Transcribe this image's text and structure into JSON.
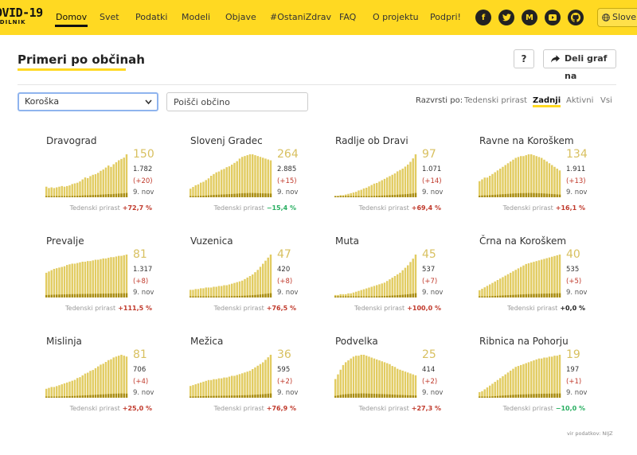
{
  "nav": {
    "logo_main": "OVID-19",
    "logo_sub": "EDILNIK",
    "items": [
      {
        "label": "Domov",
        "active": true
      },
      {
        "label": "Svet"
      },
      {
        "label": "Podatki"
      },
      {
        "label": "Modeli"
      },
      {
        "label": "Objave"
      },
      {
        "label": "#OstaniZdrav"
      },
      {
        "label": "FAQ"
      },
      {
        "label": "O projektu"
      },
      {
        "label": "Podpri!"
      }
    ],
    "social": [
      "facebook-icon",
      "twitter-icon",
      "medium-icon",
      "youtube-icon",
      "github-icon"
    ],
    "language": "Sloven"
  },
  "header": {
    "title": "Primeri po občinah",
    "help_label": "?",
    "share_label": "Deli graf na"
  },
  "filters": {
    "region": "Koroška",
    "search_placeholder": "Poišči občino",
    "sort_label": "Razvrsti po:",
    "sort_options": [
      "Tedenski prirast",
      "Zadnji",
      "Aktivni",
      "Vsi"
    ],
    "sort_active": "Zadnji"
  },
  "growth_label": "Tedenski prirast",
  "colors": {
    "accent": "#ffd922",
    "bar_light": "#e2cc62",
    "bar_dark": "#a88c12",
    "positive": "#c0392b",
    "negative": "#27ae60"
  },
  "cards": [
    {
      "name": "Dravograd",
      "value": "150",
      "total": "1.782",
      "delta": "(+20)",
      "date": "9. nov",
      "growth": "+72,7 %",
      "trend": "pos",
      "bars": [
        16,
        14,
        15,
        14,
        15,
        16,
        17,
        16,
        17,
        18,
        20,
        21,
        22,
        24,
        27,
        30,
        29,
        32,
        34,
        35,
        37,
        40,
        42,
        45,
        48,
        46,
        50,
        53,
        56,
        58,
        60,
        65
      ]
    },
    {
      "name": "Slovenj Gradec",
      "value": "264",
      "total": "2.885",
      "delta": "(+15)",
      "date": "9. nov",
      "growth": "−15,4 %",
      "trend": "neg",
      "bars": [
        10,
        12,
        14,
        15,
        17,
        18,
        20,
        22,
        25,
        27,
        29,
        30,
        32,
        33,
        35,
        36,
        38,
        40,
        42,
        45,
        47,
        48,
        49,
        50,
        50,
        49,
        48,
        47,
        46,
        45,
        44,
        43
      ]
    },
    {
      "name": "Radlje ob Dravi",
      "value": "97",
      "total": "1.071",
      "delta": "(+14)",
      "date": "9. nov",
      "growth": "+69,4 %",
      "trend": "pos",
      "bars": [
        2,
        2,
        3,
        3,
        4,
        5,
        6,
        7,
        8,
        10,
        11,
        13,
        14,
        16,
        18,
        20,
        21,
        23,
        25,
        27,
        29,
        31,
        33,
        35,
        38,
        40,
        42,
        45,
        48,
        52,
        57,
        63
      ]
    },
    {
      "name": "Ravne na Koroškem",
      "value": "134",
      "total": "1.911",
      "delta": "(+13)",
      "date": "9. nov",
      "growth": "+16,1 %",
      "trend": "pos",
      "bars": [
        18,
        20,
        22,
        22,
        24,
        26,
        28,
        30,
        32,
        34,
        36,
        38,
        40,
        42,
        44,
        45,
        46,
        46,
        47,
        48,
        48,
        47,
        46,
        45,
        44,
        42,
        40,
        38,
        36,
        34,
        32,
        30
      ]
    },
    {
      "name": "Prevalje",
      "value": "81",
      "total": "1.317",
      "delta": "(+8)",
      "date": "9. nov",
      "growth": "+111,5 %",
      "trend": "pos",
      "bars": [
        38,
        40,
        42,
        44,
        45,
        46,
        47,
        48,
        50,
        51,
        52,
        52,
        53,
        54,
        55,
        55,
        56,
        56,
        57,
        58,
        58,
        59,
        60,
        60,
        61,
        62,
        62,
        63,
        64,
        64,
        65,
        66
      ]
    },
    {
      "name": "Vuzenica",
      "value": "47",
      "total": "420",
      "delta": "(+8)",
      "date": "9. nov",
      "growth": "+76,5 %",
      "trend": "pos",
      "bars": [
        10,
        10,
        11,
        11,
        12,
        12,
        13,
        13,
        13,
        14,
        14,
        15,
        15,
        16,
        16,
        17,
        18,
        19,
        20,
        21,
        22,
        24,
        26,
        28,
        30,
        33,
        36,
        40,
        44,
        48,
        52,
        56
      ]
    },
    {
      "name": "Muta",
      "value": "45",
      "total": "537",
      "delta": "(+7)",
      "date": "9. nov",
      "growth": "+100,0 %",
      "trend": "pos",
      "bars": [
        3,
        3,
        4,
        4,
        4,
        5,
        5,
        6,
        7,
        8,
        9,
        10,
        11,
        12,
        13,
        14,
        15,
        16,
        17,
        18,
        20,
        22,
        24,
        26,
        28,
        30,
        33,
        36,
        39,
        43,
        47,
        52
      ]
    },
    {
      "name": "Črna na Koroškem",
      "value": "40",
      "total": "535",
      "delta": "(+5)",
      "date": "9. nov",
      "growth": "+0,0 %",
      "trend": "zero",
      "bars": [
        10,
        12,
        14,
        16,
        18,
        20,
        22,
        24,
        26,
        28,
        30,
        32,
        34,
        36,
        38,
        40,
        42,
        44,
        46,
        47,
        48,
        49,
        50,
        51,
        52,
        53,
        54,
        55,
        56,
        57,
        58,
        59
      ]
    },
    {
      "name": "Mislinja",
      "value": "81",
      "total": "706",
      "delta": "(+4)",
      "date": "9. nov",
      "growth": "+25,0 %",
      "trend": "pos",
      "bars": [
        10,
        11,
        12,
        12,
        13,
        14,
        15,
        16,
        17,
        18,
        19,
        20,
        22,
        23,
        25,
        27,
        28,
        30,
        31,
        33,
        35,
        37,
        38,
        40,
        42,
        43,
        45,
        46,
        47,
        48,
        47,
        46
      ]
    },
    {
      "name": "Mežica",
      "value": "36",
      "total": "595",
      "delta": "(+2)",
      "date": "9. nov",
      "growth": "+76,9 %",
      "trend": "pos",
      "bars": [
        14,
        15,
        16,
        17,
        18,
        19,
        20,
        21,
        21,
        22,
        22,
        23,
        23,
        24,
        24,
        25,
        26,
        26,
        27,
        28,
        29,
        30,
        31,
        32,
        34,
        36,
        38,
        40,
        42,
        45,
        48,
        51
      ]
    },
    {
      "name": "Podvelka",
      "value": "25",
      "total": "414",
      "delta": "(+2)",
      "date": "9. nov",
      "growth": "+27,3 %",
      "trend": "pos",
      "bars": [
        20,
        25,
        30,
        35,
        38,
        40,
        42,
        44,
        45,
        45,
        46,
        46,
        45,
        44,
        43,
        42,
        41,
        40,
        39,
        38,
        37,
        36,
        34,
        33,
        31,
        30,
        29,
        28,
        27,
        26,
        25,
        24
      ]
    },
    {
      "name": "Ribnica na Pohorju",
      "value": "19",
      "total": "197",
      "delta": "(+1)",
      "date": "9. nov",
      "growth": "−10,0 %",
      "trend": "neg",
      "bars": [
        6,
        7,
        9,
        11,
        13,
        15,
        17,
        19,
        21,
        23,
        25,
        27,
        29,
        31,
        33,
        34,
        35,
        36,
        37,
        38,
        39,
        40,
        41,
        42,
        42,
        43,
        43,
        44,
        44,
        45,
        45,
        46
      ]
    }
  ],
  "source": "vir podatkov: NIJZ"
}
